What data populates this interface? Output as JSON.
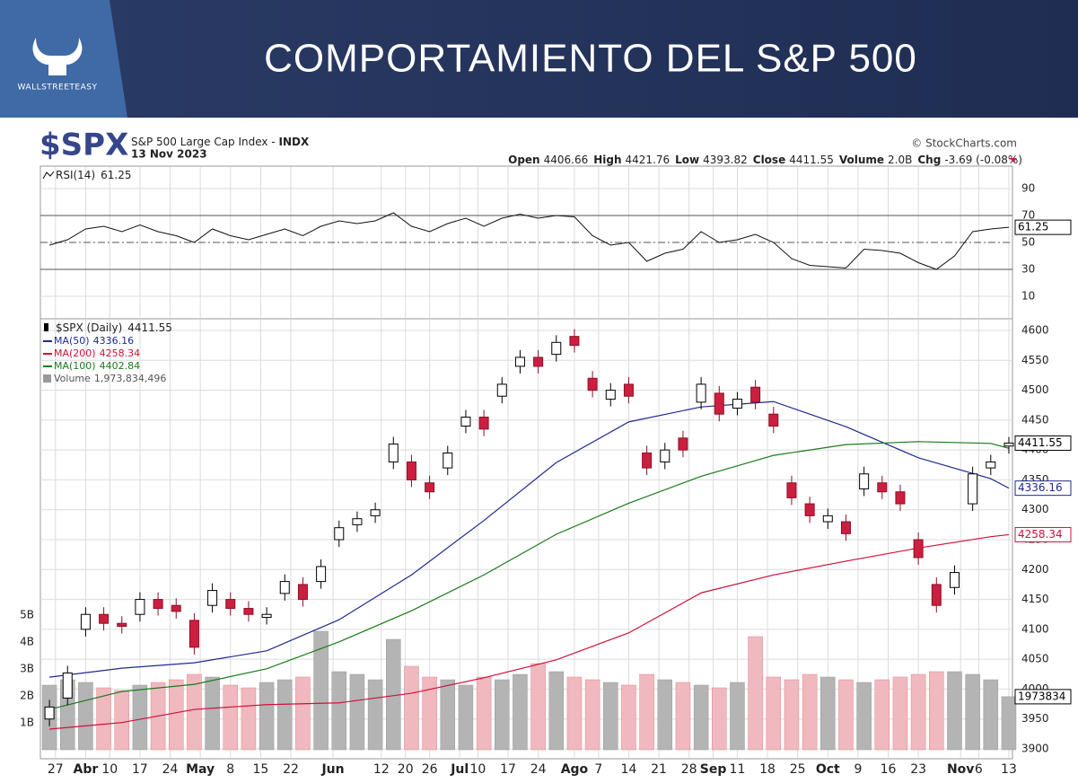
{
  "banner": {
    "title": "COMPORTAMIENTO DEL S&P 500",
    "brand": "WALLSTREETEASY"
  },
  "chart_data": {
    "type": "candlestick",
    "symbol": "$SPX",
    "name": "S&P 500 Large Cap Index -",
    "exchange": "INDX",
    "date": "13 Nov 2023",
    "source": "© StockCharts.com",
    "quote_labels": {
      "open": "Open",
      "high": "High",
      "low": "Low",
      "close": "Close",
      "volume": "Volume",
      "change": "Chg"
    },
    "volume_text": "2.0B",
    "change_text": "-3.69 (-0.08%)",
    "price_label": "$SPX (Daily)",
    "x": [
      0,
      3,
      6,
      9,
      12,
      15,
      18,
      21,
      24,
      27,
      30,
      33,
      36,
      39,
      42,
      45,
      48,
      51,
      54,
      57,
      60,
      63,
      66,
      69,
      72,
      75,
      78,
      81,
      84,
      87,
      90,
      93,
      96,
      99,
      102,
      105,
      108,
      111,
      114,
      117,
      120,
      123,
      126,
      129,
      132,
      135,
      138,
      141,
      144,
      147,
      150,
      153,
      156,
      159
    ],
    "open": [
      3950,
      3985,
      4100,
      4125,
      4110,
      4125,
      4150,
      4140,
      4115,
      4140,
      4150,
      4135,
      4120,
      4160,
      4175,
      4180,
      4250,
      4275,
      4290,
      4380,
      4380,
      4345,
      4370,
      4440,
      4455,
      4490,
      4540,
      4555,
      4560,
      4590,
      4520,
      4485,
      4510,
      4395,
      4380,
      4420,
      4480,
      4495,
      4470,
      4505,
      4460,
      4345,
      4310,
      4280,
      4280,
      4335,
      4345,
      4330,
      4250,
      4175,
      4170,
      4310,
      4370,
      4406.66
    ],
    "high": [
      3982,
      4039,
      4137,
      4137,
      4122,
      4162,
      4162,
      4152,
      4127,
      4177,
      4162,
      4147,
      4137,
      4192,
      4187,
      4217,
      4282,
      4297,
      4312,
      4422,
      4392,
      4357,
      4407,
      4467,
      4467,
      4522,
      4567,
      4567,
      4592,
      4602,
      4532,
      4512,
      4522,
      4407,
      4412,
      4432,
      4522,
      4507,
      4497,
      4517,
      4472,
      4357,
      4322,
      4302,
      4292,
      4372,
      4357,
      4342,
      4262,
      4187,
      4207,
      4372,
      4392,
      4421.76
    ],
    "low": [
      3938,
      3973,
      4088,
      4098,
      4093,
      4113,
      4123,
      4118,
      4058,
      4128,
      4123,
      4113,
      4108,
      4148,
      4138,
      4168,
      4238,
      4263,
      4278,
      4368,
      4338,
      4318,
      4358,
      4428,
      4423,
      4478,
      4528,
      4528,
      4548,
      4563,
      4488,
      4473,
      4478,
      4358,
      4368,
      4388,
      4468,
      4448,
      4458,
      4468,
      4428,
      4308,
      4278,
      4268,
      4248,
      4323,
      4318,
      4298,
      4208,
      4128,
      4158,
      4298,
      4358,
      4393.82
    ],
    "close": [
      3970,
      4027,
      4125,
      4110,
      4105,
      4150,
      4135,
      4130,
      4070,
      4165,
      4135,
      4125,
      4125,
      4180,
      4150,
      4205,
      4270,
      4285,
      4300,
      4410,
      4350,
      4330,
      4395,
      4455,
      4435,
      4510,
      4555,
      4540,
      4580,
      4575,
      4500,
      4500,
      4490,
      4370,
      4400,
      4400,
      4510,
      4460,
      4485,
      4480,
      4440,
      4320,
      4290,
      4290,
      4260,
      4360,
      4330,
      4310,
      4220,
      4140,
      4195,
      4360,
      4380,
      4411.55
    ],
    "up_color": "#ffffff",
    "down_color": "#cc1f3f",
    "xlim": [
      -1.5,
      159.6
    ],
    "xticks": [
      {
        "value": 1,
        "label": "27"
      },
      {
        "value": 6,
        "label": "Abr"
      },
      {
        "value": 10,
        "label": "10"
      },
      {
        "value": 15,
        "label": "17"
      },
      {
        "value": 20,
        "label": "24"
      },
      {
        "value": 25,
        "label": "May"
      },
      {
        "value": 30,
        "label": "8"
      },
      {
        "value": 35,
        "label": "15"
      },
      {
        "value": 40,
        "label": "22"
      },
      {
        "value": 47,
        "label": "Jun"
      },
      {
        "value": 55,
        "label": "12"
      },
      {
        "value": 59,
        "label": "20"
      },
      {
        "value": 63,
        "label": "26"
      },
      {
        "value": 68,
        "label": "Jul"
      },
      {
        "value": 71,
        "label": "10"
      },
      {
        "value": 76,
        "label": "17"
      },
      {
        "value": 81,
        "label": "24"
      },
      {
        "value": 87,
        "label": "Ago"
      },
      {
        "value": 91,
        "label": "7"
      },
      {
        "value": 96,
        "label": "14"
      },
      {
        "value": 101,
        "label": "21"
      },
      {
        "value": 106,
        "label": "28"
      },
      {
        "value": 110,
        "label": "Sep"
      },
      {
        "value": 114,
        "label": "11"
      },
      {
        "value": 119,
        "label": "18"
      },
      {
        "value": 124,
        "label": "25"
      },
      {
        "value": 129,
        "label": "Oct"
      },
      {
        "value": 134,
        "label": "9"
      },
      {
        "value": 139,
        "label": "16"
      },
      {
        "value": 144,
        "label": "23"
      },
      {
        "value": 151,
        "label": "Nov"
      },
      {
        "value": 154,
        "label": "6"
      },
      {
        "value": 159,
        "label": "13"
      }
    ],
    "ylim": [
      3900,
      4600
    ],
    "yticks": [
      3900,
      3950,
      4000,
      4050,
      4100,
      4150,
      4200,
      4250,
      4300,
      4350,
      4400,
      4450,
      4500,
      4550,
      4600
    ],
    "grid": true,
    "moving_averages": {
      "x": [
        0,
        12,
        24,
        36,
        48,
        60,
        72,
        84,
        96,
        108,
        120,
        132,
        144,
        156,
        159
      ],
      "series": [
        {
          "name": "MA(50)",
          "color": "#1f2a8c",
          "values": [
            4020,
            4035,
            4044,
            4064,
            4116,
            4191,
            4282,
            4379,
            4447,
            4472,
            4481,
            4439,
            4387,
            4352,
            4336.16
          ]
        },
        {
          "name": "MA(200)",
          "color": "#d0103a",
          "values": [
            3933,
            3944,
            3966,
            3974,
            3977,
            3993,
            4019,
            4049,
            4094,
            4161,
            4191,
            4214,
            4236,
            4255,
            4258.34
          ]
        },
        {
          "name": "MA(100)",
          "color": "#1c7a1c",
          "values": [
            3966,
            3996,
            4008,
            4034,
            4079,
            4131,
            4191,
            4259,
            4311,
            4356,
            4391,
            4409,
            4414,
            4411,
            4402.84
          ]
        }
      ]
    },
    "volume": {
      "label": "Volume",
      "value_label": "1,973,834,496",
      "axis_label": "1973834",
      "values": [
        2.4,
        2.6,
        2.5,
        2.3,
        2.2,
        2.4,
        2.5,
        2.6,
        2.8,
        2.7,
        2.4,
        2.3,
        2.5,
        2.6,
        2.7,
        4.4,
        2.9,
        2.8,
        2.6,
        4.1,
        3.1,
        2.7,
        2.6,
        2.4,
        2.7,
        2.6,
        2.8,
        3.2,
        2.9,
        2.7,
        2.6,
        2.5,
        2.4,
        2.8,
        2.6,
        2.5,
        2.4,
        2.3,
        2.5,
        4.2,
        2.7,
        2.6,
        2.8,
        2.7,
        2.6,
        2.5,
        2.6,
        2.7,
        2.8,
        2.9,
        2.9,
        2.8,
        2.6,
        1.97
      ],
      "ylim": [
        0,
        5
      ],
      "yticks": [
        {
          "value": 1,
          "label": "1B"
        },
        {
          "value": 2,
          "label": "2B"
        },
        {
          "value": 3,
          "label": "3B"
        },
        {
          "value": 4,
          "label": "4B"
        },
        {
          "value": 5,
          "label": "5B"
        }
      ],
      "up_color": "#b4b4b4",
      "down_color": "#f0b8bf"
    },
    "rsi": {
      "label": "RSI(14)",
      "values": [
        48,
        52,
        60,
        62,
        58,
        63,
        58,
        55,
        50,
        60,
        55,
        52,
        56,
        60,
        55,
        62,
        66,
        64,
        66,
        72,
        62,
        58,
        64,
        68,
        62,
        68,
        71,
        68,
        70,
        69,
        55,
        48,
        50,
        36,
        42,
        45,
        58,
        50,
        52,
        56,
        50,
        38,
        33,
        32,
        31,
        45,
        44,
        42,
        35,
        30,
        40,
        58,
        60,
        61.25
      ],
      "ylim": [
        10,
        90
      ],
      "yticks": [
        10,
        30,
        50,
        70,
        90
      ],
      "color": "#111111"
    }
  }
}
